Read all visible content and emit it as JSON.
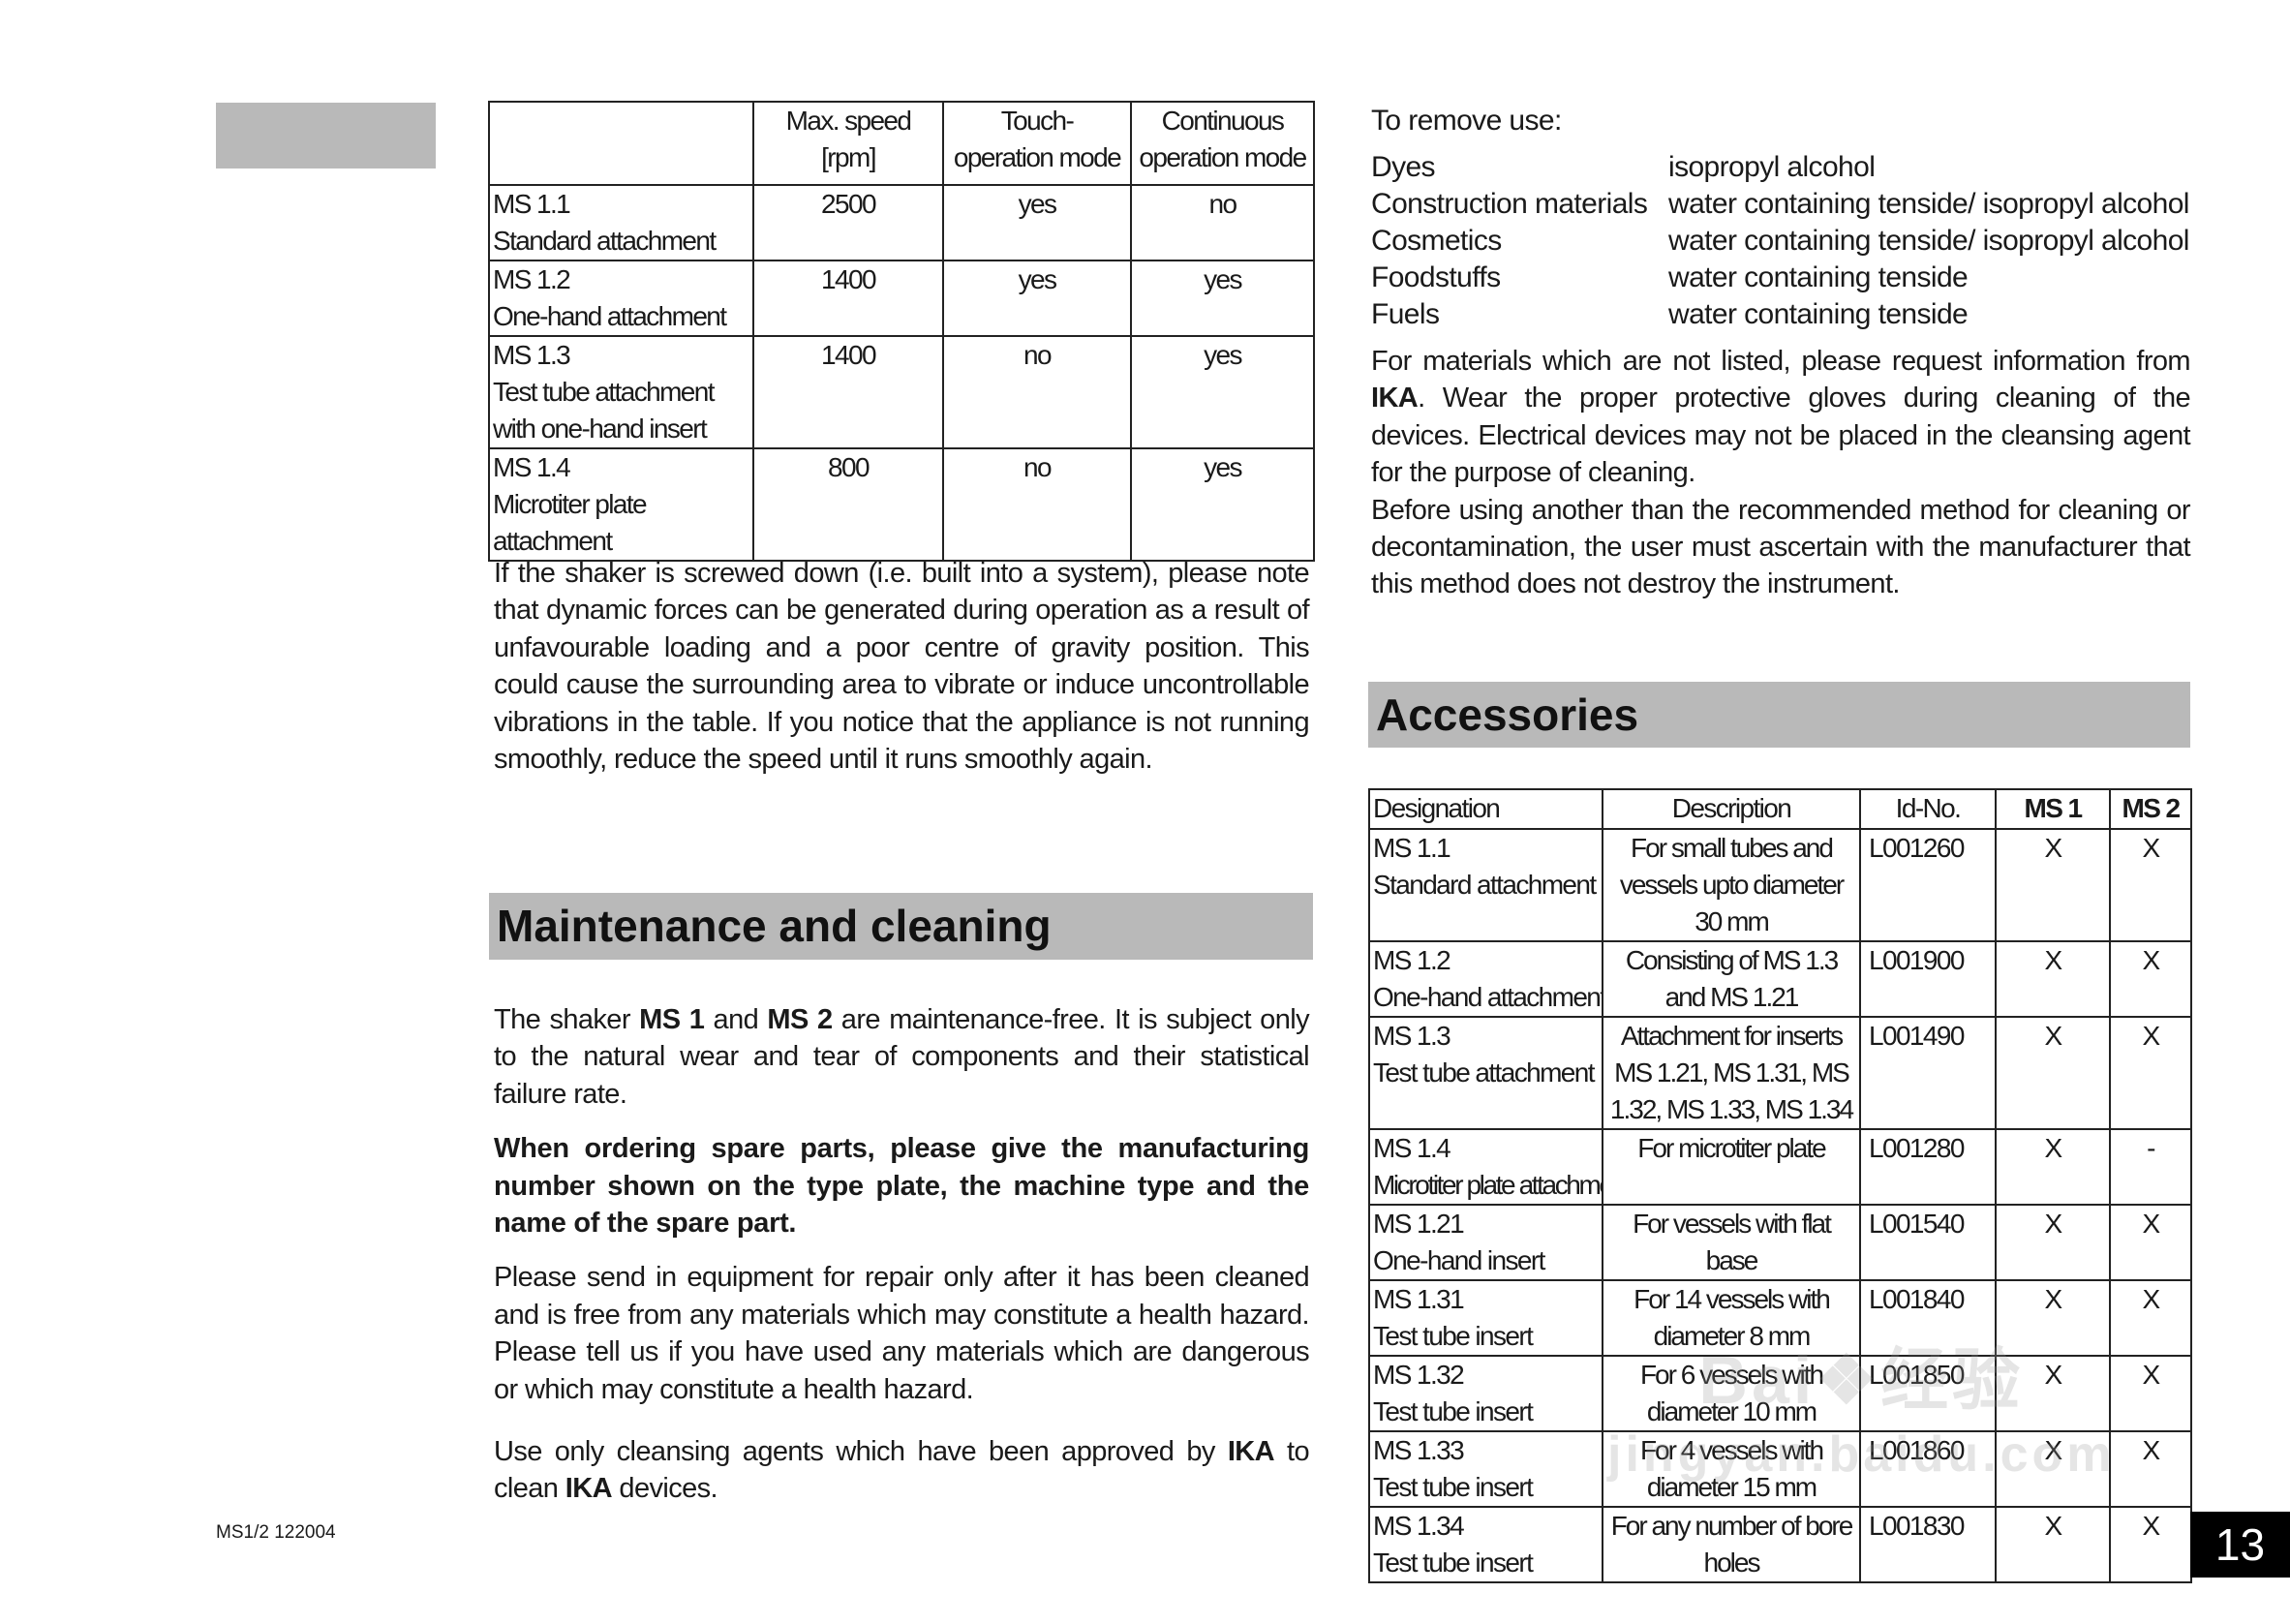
{
  "spec_table": {
    "headers": [
      "",
      "Max. speed\n[rpm]",
      "Touch-\noperation mode",
      "Continuous\noperation mode"
    ],
    "rows": [
      {
        "designation": "MS 1.1",
        "name": "Standard attachment",
        "speed": "2500",
        "touch": "yes",
        "continuous": "no"
      },
      {
        "designation": "MS 1.2",
        "name": "One-hand attachment",
        "speed": "1400",
        "touch": "yes",
        "continuous": "yes"
      },
      {
        "designation": "MS 1.3",
        "name": "Test tube attachment with one-hand insert",
        "speed": "1400",
        "touch": "no",
        "continuous": "yes"
      },
      {
        "designation": "MS 1.4",
        "name": "Microtiter plate attachment",
        "speed": "800",
        "touch": "no",
        "continuous": "yes"
      }
    ]
  },
  "para_screwed": "If the shaker is screwed down (i.e. built into a system), please note that dynamic forces can be generated during operation as a result of unfavourable loading and a poor centre of gravity position. This could cause the surrounding area to vibrate or induce uncontrollable vibrations in the table. If you notice that the appliance is not running smoothly, reduce the speed until it runs smoothly again.",
  "maintenance": {
    "title": "Maintenance and cleaning",
    "p1_a": "The shaker ",
    "p1_ms1": "MS 1",
    "p1_and": " and ",
    "p1_ms2": "MS 2",
    "p1_b": " are maintenance-free. It is subject only to the natural wear and tear of components and their statistical failure rate.",
    "p2": "When ordering spare parts, please give the manufacturing number shown on the type plate, the machine type and the name of the spare part.",
    "p3": "Please send in equipment for repair only after it has been cleaned and is free from any materials which may constitute a health hazard. Please tell us if you have used any materials which are dangerous or which may constitute a health hazard.",
    "p4_a": "Use only cleansing agents which have been approved by ",
    "p4_ika1": "IKA",
    "p4_b": " to clean ",
    "p4_ika2": "IKA",
    "p4_c": " devices."
  },
  "footer_code": "MS1/2 122004",
  "cleaning": {
    "intro": "To remove use:",
    "items": [
      {
        "material": "Dyes",
        "agent": "isopropyl alcohol"
      },
      {
        "material": "Construction materials",
        "agent": "water containing tenside/ isopropyl alcohol"
      },
      {
        "material": "Cosmetics",
        "agent": "water containing tenside/ isopropyl alcohol"
      },
      {
        "material": "Foodstuffs",
        "agent": "water containing tenside"
      },
      {
        "material": "Fuels",
        "agent": "water containing tenside"
      }
    ],
    "p1_a": "For materials which are not listed, please request information from ",
    "p1_ika": "IKA",
    "p1_b": ". Wear the proper protective gloves during cleaning of the devices. Electrical devices may not be placed in the cleansing agent for the purpose of cleaning.",
    "p2": "Before using another than the recommended method for cleaning or decontamination, the user must ascertain with the manufacturer that this method does not destroy the instrument."
  },
  "accessories": {
    "title": "Accessories",
    "headers": [
      "Designation",
      "Description",
      "Id-No.",
      "MS 1",
      "MS 2"
    ],
    "rows": [
      {
        "des": "MS 1.1",
        "name": "Standard attachment",
        "desc": "For small tubes and vessels upto diameter 30 mm",
        "id": "L001260",
        "ms1": "X",
        "ms2": "X"
      },
      {
        "des": "MS 1.2",
        "name": "One-hand attachment",
        "desc": "Consisting of MS 1.3 and MS 1.21",
        "id": "L001900",
        "ms1": "X",
        "ms2": "X"
      },
      {
        "des": "MS 1.3",
        "name": "Test tube attachment",
        "desc": "Attachment for inserts MS 1.21, MS 1.31, MS 1.32, MS 1.33, MS 1.34",
        "id": "L001490",
        "ms1": "X",
        "ms2": "X"
      },
      {
        "des": "MS 1.4",
        "name": "Microtiter plate attachment",
        "desc": "For microtiter plate",
        "id": "L001280",
        "ms1": "X",
        "ms2": "-"
      },
      {
        "des": "MS 1.21",
        "name": "One-hand insert",
        "desc": "For vessels with flat base",
        "id": "L001540",
        "ms1": "X",
        "ms2": "X"
      },
      {
        "des": "MS 1.31",
        "name": "Test tube insert",
        "desc": "For 14 vessels with diameter 8 mm",
        "id": "L001840",
        "ms1": "X",
        "ms2": "X"
      },
      {
        "des": "MS 1.32",
        "name": "Test tube insert",
        "desc": "For 6 vessels with diameter 10 mm",
        "id": "L001850",
        "ms1": "X",
        "ms2": "X"
      },
      {
        "des": "MS 1.33",
        "name": "Test tube insert",
        "desc": "For 4 vessels with diameter 15 mm",
        "id": "L001860",
        "ms1": "X",
        "ms2": "X"
      },
      {
        "des": "MS 1.34",
        "name": "Test tube insert",
        "desc": "For any number of bore holes",
        "id": "L001830",
        "ms1": "X",
        "ms2": "X"
      }
    ]
  },
  "page_number": "13",
  "watermark": "Bai du 经验 jingyan.baidu.com"
}
